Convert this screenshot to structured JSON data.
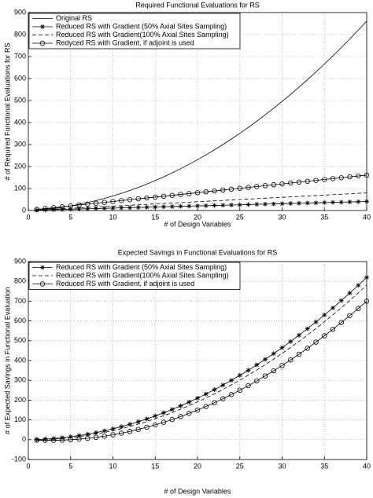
{
  "chart_data": [
    {
      "type": "line",
      "title": "Required Functional Evaluations for RS",
      "x_label": "# of Design Variables",
      "y_label": "# of Required Functional Evaluations for RS",
      "xlim": [
        0,
        40
      ],
      "xticks": [
        0,
        5,
        10,
        15,
        20,
        25,
        30,
        35,
        40
      ],
      "ylim": [
        0,
        900
      ],
      "yticks": [
        0,
        100,
        200,
        300,
        400,
        500,
        600,
        700,
        800,
        900
      ],
      "grid": true,
      "legend": "upper-left",
      "x": [
        1,
        2,
        3,
        4,
        5,
        6,
        7,
        8,
        9,
        10,
        11,
        12,
        13,
        14,
        15,
        16,
        17,
        18,
        19,
        20,
        21,
        22,
        23,
        24,
        25,
        26,
        27,
        28,
        29,
        30,
        31,
        32,
        33,
        34,
        35,
        36,
        37,
        38,
        39,
        40
      ],
      "series": [
        {
          "name": "Original RS",
          "color": "#000000",
          "line": "solid",
          "marker": "none",
          "values": [
            3,
            6,
            10,
            15,
            21,
            28,
            36,
            45,
            55,
            66,
            78,
            91,
            105,
            120,
            136,
            153,
            171,
            190,
            210,
            231,
            253,
            276,
            300,
            325,
            351,
            378,
            406,
            435,
            465,
            496,
            528,
            561,
            595,
            630,
            666,
            703,
            741,
            780,
            820,
            861
          ]
        },
        {
          "name": "Reduced RS with Gradient (50% Axial Sites Sampling)",
          "color": "#000000",
          "line": "solid",
          "marker": "star",
          "values": [
            2,
            3,
            4,
            5,
            6,
            7,
            8,
            9,
            10,
            11,
            12,
            13,
            14,
            15,
            16,
            17,
            18,
            19,
            20,
            21,
            22,
            23,
            24,
            25,
            26,
            27,
            28,
            29,
            30,
            31,
            32,
            33,
            34,
            35,
            36,
            37,
            38,
            39,
            40,
            41
          ]
        },
        {
          "name": "Reduced RS with Gradient(100% Axial Sites Sampling)",
          "color": "#000000",
          "line": "dashed",
          "marker": "none",
          "values": [
            2,
            4,
            6,
            8,
            10,
            12,
            14,
            16,
            18,
            20,
            22,
            24,
            26,
            28,
            30,
            32,
            34,
            36,
            38,
            40,
            42,
            44,
            46,
            48,
            50,
            52,
            54,
            56,
            58,
            60,
            62,
            64,
            66,
            68,
            70,
            72,
            74,
            76,
            78,
            80
          ]
        },
        {
          "name": "Redyced RS with Gradient, if adjoint is used",
          "color": "#000000",
          "line": "solid",
          "marker": "circle",
          "values": [
            5,
            9,
            13,
            17,
            21,
            25,
            29,
            33,
            37,
            41,
            45,
            49,
            53,
            57,
            61,
            65,
            69,
            73,
            77,
            81,
            85,
            89,
            93,
            97,
            101,
            105,
            109,
            113,
            117,
            121,
            125,
            129,
            133,
            137,
            141,
            145,
            149,
            153,
            157,
            161
          ]
        }
      ]
    },
    {
      "type": "line",
      "title": "Expected Savings in Functional Evaluations for RS",
      "x_label": "# of Design Variables",
      "y_label": "# of Expected Savings in Functional Evaluation",
      "xlim": [
        0,
        40
      ],
      "xticks": [
        0,
        5,
        10,
        15,
        20,
        25,
        30,
        35,
        40
      ],
      "ylim": [
        -100,
        900
      ],
      "yticks": [
        -100,
        0,
        100,
        200,
        300,
        400,
        500,
        600,
        700,
        800,
        900
      ],
      "grid": true,
      "legend": "upper-left",
      "x": [
        1,
        2,
        3,
        4,
        5,
        6,
        7,
        8,
        9,
        10,
        11,
        12,
        13,
        14,
        15,
        16,
        17,
        18,
        19,
        20,
        21,
        22,
        23,
        24,
        25,
        26,
        27,
        28,
        29,
        30,
        31,
        32,
        33,
        34,
        35,
        36,
        37,
        38,
        39,
        40
      ],
      "series": [
        {
          "name": "Reduced RS with Gradient (50% Axial Sites Sampling)",
          "color": "#000000",
          "line": "solid",
          "marker": "star",
          "values": [
            1,
            3,
            6,
            10,
            15,
            21,
            28,
            36,
            45,
            55,
            66,
            78,
            91,
            105,
            120,
            136,
            153,
            171,
            190,
            210,
            231,
            253,
            276,
            300,
            325,
            351,
            378,
            406,
            435,
            465,
            496,
            528,
            561,
            595,
            630,
            666,
            703,
            741,
            780,
            820
          ]
        },
        {
          "name": "Reduced RS with Gradient(100% Axial Sites Sampling)",
          "color": "#000000",
          "line": "dashed",
          "marker": "none",
          "values": [
            1,
            2,
            4,
            7,
            11,
            16,
            22,
            29,
            37,
            46,
            56,
            67,
            79,
            92,
            106,
            121,
            137,
            154,
            172,
            191,
            211,
            232,
            254,
            277,
            301,
            326,
            352,
            379,
            407,
            436,
            466,
            497,
            529,
            562,
            596,
            631,
            667,
            704,
            742,
            781
          ]
        },
        {
          "name": "Reduced RS with Gradient, if adjoint is used",
          "color": "#000000",
          "line": "solid",
          "marker": "circle",
          "values": [
            -2,
            -3,
            -3,
            -2,
            0,
            3,
            7,
            12,
            18,
            25,
            33,
            42,
            52,
            63,
            75,
            88,
            102,
            117,
            133,
            150,
            168,
            187,
            207,
            228,
            250,
            273,
            297,
            322,
            348,
            375,
            403,
            432,
            462,
            493,
            525,
            558,
            592,
            627,
            663,
            700
          ]
        }
      ]
    }
  ]
}
